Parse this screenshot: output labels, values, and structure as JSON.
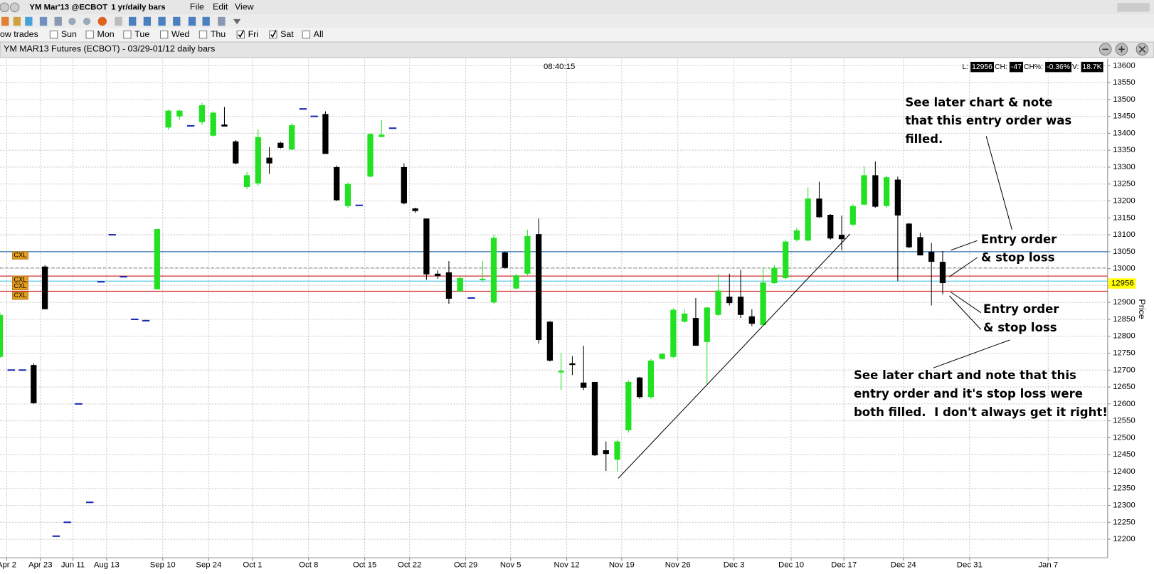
{
  "toolbar": {
    "symbol": "YM Mar'13 @ECBOT",
    "period": "1 yr/daily bars",
    "menus": [
      "File",
      "Edit",
      "View"
    ]
  },
  "filter": {
    "label": "ow trades",
    "days": [
      {
        "name": "Sun",
        "checked": false
      },
      {
        "name": "Mon",
        "checked": false
      },
      {
        "name": "Tue",
        "checked": false
      },
      {
        "name": "Wed",
        "checked": false
      },
      {
        "name": "Thu",
        "checked": false
      },
      {
        "name": "Fri",
        "checked": true
      },
      {
        "name": "Sat",
        "checked": true
      },
      {
        "name": "All",
        "checked": false
      }
    ]
  },
  "window_title": "YM MAR13 Futures (ECBOT) - 03/29-01/12 daily bars",
  "chart_data": {
    "type": "candlestick",
    "time": "08:40:15",
    "stats": [
      {
        "label": "L:",
        "value": "12956"
      },
      {
        "label": "CH:",
        "value": "-47"
      },
      {
        "label": "CH%:",
        "value": "-0.36%"
      },
      {
        "label": "V:",
        "value": "18.7K"
      }
    ],
    "y_label": "Price",
    "ylim": [
      12145,
      13620
    ],
    "yticks": [
      12200,
      12250,
      12300,
      12350,
      12400,
      12450,
      12500,
      12550,
      12600,
      12650,
      12700,
      12750,
      12800,
      12850,
      12900,
      12950,
      13000,
      13050,
      13100,
      13150,
      13200,
      13250,
      13300,
      13350,
      13400,
      13450,
      13500,
      13550,
      13600
    ],
    "xlim": [
      -14,
      84.7
    ],
    "xticks": [
      {
        "value": -13.4,
        "label": "Apr 2"
      },
      {
        "value": -10.4,
        "label": "Apr 23"
      },
      {
        "value": -7.5,
        "label": "Jun 11"
      },
      {
        "value": -4.5,
        "label": "Aug 13"
      },
      {
        "value": 0.5,
        "label": "Sep 10"
      },
      {
        "value": 4.6,
        "label": "Sep 24"
      },
      {
        "value": 8.5,
        "label": "Oct 1"
      },
      {
        "value": 13.5,
        "label": "Oct 8"
      },
      {
        "value": 18.5,
        "label": "Oct 15"
      },
      {
        "value": 22.5,
        "label": "Oct 22"
      },
      {
        "value": 27.5,
        "label": "Oct 29"
      },
      {
        "value": 31.5,
        "label": "Nov 5"
      },
      {
        "value": 36.5,
        "label": "Nov 12"
      },
      {
        "value": 41.4,
        "label": "Nov 19"
      },
      {
        "value": 46.4,
        "label": "Nov 26"
      },
      {
        "value": 51.4,
        "label": "Dec 3"
      },
      {
        "value": 56.5,
        "label": "Dec 10"
      },
      {
        "value": 61.2,
        "label": "Dec 17"
      },
      {
        "value": 66.5,
        "label": "Dec 24"
      },
      {
        "value": 72.4,
        "label": "Dec 31"
      },
      {
        "value": 79.4,
        "label": "Jan 7"
      }
    ],
    "grid": true,
    "up_color": "#22e022",
    "down_color": "#000000",
    "flat_color": "#1a2ab0",
    "x": [
      -14,
      -13,
      -12,
      -11,
      -10,
      -9,
      -8,
      -7,
      -6,
      -5,
      -4,
      -3,
      -2,
      -1,
      0,
      1,
      2,
      3,
      4,
      5,
      6,
      7,
      8,
      9,
      10,
      11,
      12,
      13,
      14,
      15,
      16,
      17,
      18,
      19,
      20,
      21,
      22,
      23,
      24,
      25,
      26,
      27,
      28,
      29,
      30,
      31,
      32,
      33,
      34,
      35,
      36,
      37,
      38,
      39,
      40,
      41,
      42,
      43,
      44,
      45,
      46,
      47,
      48,
      49,
      50,
      51,
      52,
      53,
      54,
      55,
      56,
      57,
      58,
      59,
      60,
      61,
      62,
      63,
      64,
      65,
      66,
      67,
      68,
      69,
      70
    ],
    "open": [
      12739,
      12700,
      12700,
      12715,
      13006,
      12209,
      12250,
      12600,
      12309,
      12961,
      13100,
      12976,
      12850,
      12846,
      12939,
      13417,
      13450,
      13422,
      13433,
      13393,
      13426,
      13376,
      13241,
      13252,
      13328,
      13372,
      13352,
      13472,
      13450,
      13457,
      13300,
      13185,
      13187,
      13272,
      13389,
      13415,
      13300,
      13178,
      13148,
      12985,
      12989,
      12933,
      12913,
      12967,
      12900,
      13048,
      12941,
      12985,
      13102,
      12843,
      12693,
      12720,
      12663,
      12665,
      12463,
      12435,
      12522,
      12678,
      12620,
      12733,
      12739,
      12843,
      12854,
      12783,
      12863,
      12917,
      12917,
      12859,
      12833,
      12957,
      12972,
      13085,
      13083,
      13207,
      13159,
      13100,
      13130,
      13189,
      13276,
      13185,
      13263,
      13133,
      13093,
      13050,
      13020
    ],
    "high": [
      12870,
      12700,
      12700,
      12720,
      13010,
      12209,
      12250,
      12600,
      12309,
      12961,
      13100,
      12976,
      12850,
      12846,
      13117,
      13470,
      13470,
      13422,
      13490,
      13465,
      13478,
      13380,
      13285,
      13412,
      13359,
      13375,
      13430,
      13472,
      13450,
      13465,
      13305,
      13255,
      13187,
      13400,
      13439,
      13415,
      13311,
      13180,
      13148,
      12995,
      13022,
      12975,
      12913,
      13022,
      13100,
      13050,
      12985,
      13115,
      13148,
      12845,
      12750,
      12741,
      12772,
      12665,
      12489,
      12495,
      12670,
      12680,
      12733,
      12750,
      12883,
      12880,
      12913,
      12887,
      12984,
      12985,
      12996,
      12880,
      13004,
      13010,
      13085,
      13120,
      13240,
      13257,
      13161,
      13157,
      13190,
      13302,
      13317,
      13275,
      13272,
      13135,
      13106,
      13076,
      13052
    ],
    "low": [
      12735,
      12700,
      12700,
      12600,
      12880,
      12209,
      12250,
      12600,
      12309,
      12961,
      13100,
      12976,
      12850,
      12846,
      12939,
      13410,
      13440,
      13422,
      13425,
      13390,
      13420,
      13308,
      13235,
      13245,
      13280,
      13355,
      13350,
      13472,
      13450,
      13339,
      13200,
      13180,
      13187,
      13270,
      13389,
      13415,
      13190,
      13165,
      12967,
      12970,
      12896,
      12930,
      12913,
      12963,
      12895,
      13000,
      12938,
      12980,
      12778,
      12725,
      12641,
      12685,
      12641,
      12446,
      12402,
      12400,
      12515,
      12615,
      12615,
      12730,
      12735,
      12840,
      12772,
      12659,
      12860,
      12891,
      12854,
      12830,
      12833,
      12955,
      12968,
      13080,
      13080,
      13150,
      13085,
      13054,
      13125,
      13187,
      13180,
      13180,
      12963,
      13060,
      13039,
      12891,
      12924
    ],
    "close": [
      12863,
      12700,
      12700,
      12602,
      12880,
      12209,
      12250,
      12600,
      12309,
      12961,
      13100,
      12976,
      12850,
      12846,
      13117,
      13467,
      13467,
      13422,
      13483,
      13461,
      13420,
      13311,
      13276,
      13389,
      13311,
      13357,
      13424,
      13472,
      13450,
      13339,
      13202,
      13250,
      13187,
      13398,
      13396,
      13415,
      13193,
      13170,
      12983,
      12978,
      12911,
      12972,
      12913,
      12970,
      13091,
      13002,
      12980,
      13096,
      12789,
      12728,
      12698,
      12715,
      12648,
      12448,
      12452,
      12489,
      12665,
      12620,
      12728,
      12748,
      12878,
      12867,
      12772,
      12885,
      12935,
      12898,
      12863,
      12837,
      12959,
      13002,
      13080,
      13113,
      13207,
      13152,
      13089,
      13087,
      13185,
      13276,
      13183,
      13270,
      13157,
      13063,
      13039,
      13020,
      12957
    ],
    "levels": [
      {
        "value": 13050,
        "color": "#2a6fb0",
        "dashed": false
      },
      {
        "value": 13002,
        "color": "#9a9a9a",
        "dashed": true
      },
      {
        "value": 12978,
        "color": "#d03030",
        "dashed": false
      },
      {
        "value": 12963,
        "color": "#5ec8e8",
        "dashed": false
      },
      {
        "value": 12933,
        "color": "#d03030",
        "dashed": false
      }
    ],
    "orders": [
      {
        "label": "CXL",
        "value": 13039
      },
      {
        "label": "CXL",
        "value": 12967
      },
      {
        "label": "CXL",
        "value": 12948
      },
      {
        "label": "CXL",
        "value": 12920
      }
    ],
    "last": 12956,
    "annotations": [
      {
        "lines": [
          "See later chart & note",
          "that this entry order was",
          "filled."
        ]
      },
      {
        "lines": [
          "Entry order",
          "& stop loss"
        ]
      },
      {
        "lines": [
          "Entry order",
          "& stop loss"
        ]
      },
      {
        "lines": [
          "See later chart and note that this",
          "entry order and it's stop loss were",
          "both filled.  I don't always get it right!"
        ]
      }
    ]
  }
}
